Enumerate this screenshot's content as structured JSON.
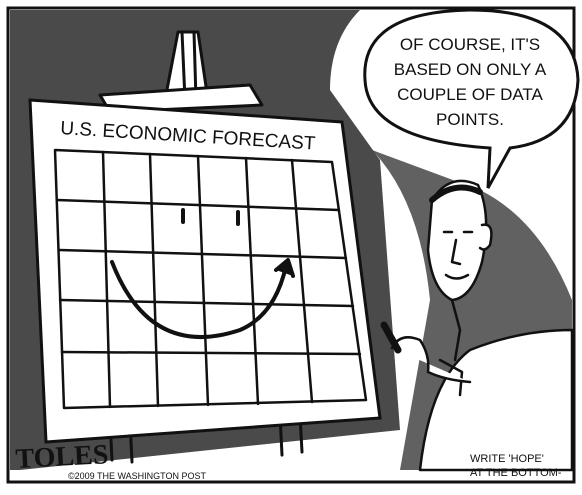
{
  "cartoon": {
    "board_title": "U.S. ECONOMIC FORECAST",
    "speech_bubble": [
      "OF COURSE, IT'S",
      "BASED ON ONLY A",
      "COUPLE OF DATA",
      "POINTS."
    ],
    "caption": [
      "WRITE 'HOPE'",
      "AT THE BOTTOM-"
    ],
    "signature": "TOLES",
    "copyright": "©2009 THE WASHINGTON POST"
  }
}
